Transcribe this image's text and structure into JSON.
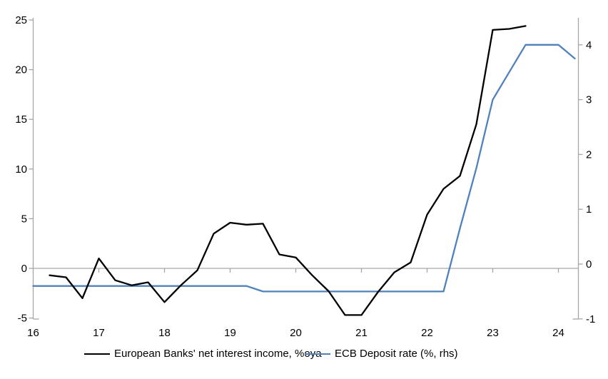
{
  "chart_data": {
    "type": "line",
    "title": "",
    "x_axis": {
      "range": [
        16,
        24.3
      ],
      "tick_values": [
        16,
        17,
        18,
        19,
        20,
        21,
        22,
        23,
        24
      ],
      "tick_labels": [
        "16",
        "17",
        "18",
        "19",
        "20",
        "21",
        "22",
        "23",
        "24"
      ]
    },
    "left_axis": {
      "range": [
        -5,
        25
      ],
      "tick_values": [
        25,
        20,
        15,
        10,
        5,
        0,
        -5
      ],
      "tick_labels": [
        "25",
        "20",
        "15",
        "10",
        "5",
        "0",
        "-5"
      ]
    },
    "right_axis": {
      "range": [
        -1,
        4.5
      ],
      "tick_values": [
        4,
        3,
        2,
        1,
        0,
        -1
      ],
      "tick_labels": [
        "4",
        "3",
        "2",
        "1",
        "0",
        "-1"
      ]
    },
    "zero_line_value": 0,
    "axis_color": "#a6a6a6",
    "series": [
      {
        "name": "European Banks' net interest income, %oya",
        "axis": "left",
        "color": "#000000",
        "points": [
          [
            16.25,
            -0.7
          ],
          [
            16.5,
            -0.9
          ],
          [
            16.75,
            -3.0
          ],
          [
            17.0,
            1.0
          ],
          [
            17.25,
            -1.2
          ],
          [
            17.5,
            -1.7
          ],
          [
            17.75,
            -1.4
          ],
          [
            18.0,
            -3.4
          ],
          [
            18.25,
            -1.7
          ],
          [
            18.5,
            -0.2
          ],
          [
            18.75,
            3.5
          ],
          [
            19.0,
            4.6
          ],
          [
            19.25,
            4.4
          ],
          [
            19.5,
            4.5
          ],
          [
            19.75,
            1.4
          ],
          [
            20.0,
            1.1
          ],
          [
            20.25,
            -0.7
          ],
          [
            20.5,
            -2.3
          ],
          [
            20.75,
            -4.7
          ],
          [
            21.0,
            -4.7
          ],
          [
            21.25,
            -2.4
          ],
          [
            21.5,
            -0.4
          ],
          [
            21.75,
            0.6
          ],
          [
            22.0,
            5.4
          ],
          [
            22.25,
            8.0
          ],
          [
            22.5,
            9.3
          ],
          [
            22.75,
            14.5
          ],
          [
            23.0,
            24.0
          ],
          [
            23.25,
            24.1
          ],
          [
            23.5,
            24.4
          ]
        ]
      },
      {
        "name": "ECB Deposit rate (%, rhs)",
        "axis": "right",
        "color": "#4F81BD",
        "points": [
          [
            16.0,
            -0.4
          ],
          [
            19.25,
            -0.4
          ],
          [
            19.5,
            -0.5
          ],
          [
            22.25,
            -0.5
          ],
          [
            22.5,
            0.65
          ],
          [
            22.75,
            1.75
          ],
          [
            23.0,
            3.0
          ],
          [
            23.25,
            3.5
          ],
          [
            23.5,
            4.0
          ],
          [
            24.0,
            4.0
          ],
          [
            24.25,
            3.75
          ]
        ]
      }
    ],
    "legend": [
      {
        "label": "European Banks' net interest income, %oya",
        "color": "#000000"
      },
      {
        "label": "ECB Deposit rate (%, rhs)",
        "color": "#4F81BD"
      }
    ]
  }
}
